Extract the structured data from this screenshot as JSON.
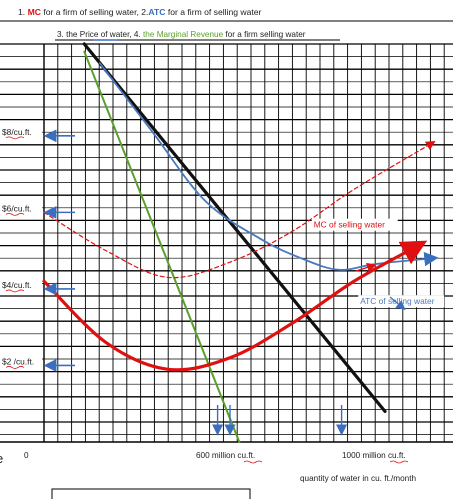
{
  "header": {
    "line1_parts": [
      {
        "text": "1. ",
        "color": "#222222"
      },
      {
        "text": "MC",
        "color": "#e01010"
      },
      {
        "text": " for a firm of selling water, 2.",
        "color": "#222222"
      },
      {
        "text": "ATC",
        "color": "#3a6fc0"
      },
      {
        "text": " for a firm of selling water",
        "color": "#222222"
      }
    ],
    "line2_parts": [
      {
        "text": "3. the ",
        "color": "#222222"
      },
      {
        "text": "Price",
        "color": "#222222"
      },
      {
        "text": " of  water, 4. ",
        "color": "#222222"
      },
      {
        "text": "the Marginal Revenue",
        "color": "#5aa02c"
      },
      {
        "text": " for a firm selling water",
        "color": "#222222"
      }
    ]
  },
  "colors": {
    "mc": "#e01010",
    "atc": "#4a78c0",
    "price": "#111111",
    "mr": "#5aa02c",
    "grid": "#000000",
    "arrow": "#3a6fc0"
  },
  "chart_data": {
    "type": "line",
    "y_tick_labels": [
      "$8/cu.ft.",
      "$6/cu.ft.",
      "$4/cu.ft.",
      "$2 /cu.ft."
    ],
    "y_tick_values": [
      8,
      6,
      4,
      2
    ],
    "x_tick_labels": [
      "0",
      "600 million cu.ft.",
      "1000 million cu.ft."
    ],
    "x_tick_values": [
      0,
      600,
      1000
    ],
    "xlabel": "quantity of water in cu. ft./month",
    "xlim": [
      0,
      1300
    ],
    "ylim": [
      0,
      10.4
    ],
    "series": [
      {
        "key": "price",
        "x": [
          130,
          1100
        ],
        "y": [
          10.4,
          0.8
        ]
      },
      {
        "key": "mr",
        "x": [
          130,
          630
        ],
        "y": [
          10.2,
          0
        ]
      },
      {
        "key": "atc",
        "x": [
          180,
          350,
          520,
          700,
          830,
          950,
          1070,
          1250
        ],
        "y": [
          9.9,
          8.1,
          6.3,
          5.3,
          4.8,
          4.5,
          4.65,
          4.8
        ]
      },
      {
        "key": "mc",
        "x": [
          0,
          200,
          400,
          600,
          800,
          1000,
          1200
        ],
        "y": [
          4.2,
          2.6,
          1.9,
          2.2,
          3.1,
          4.2,
          5.1
        ]
      },
      {
        "key": "mc_dashed",
        "x": [
          0,
          200,
          400,
          600,
          800,
          1000,
          1250
        ],
        "y": [
          6.0,
          5.0,
          4.3,
          4.7,
          5.5,
          6.6,
          7.8
        ]
      }
    ],
    "annotations": [
      {
        "text": "MC of selling water",
        "x": 870,
        "y": 5.6,
        "key": "mc"
      },
      {
        "text": "ATC of selling water",
        "x": 1020,
        "y": 3.6,
        "key": "atc"
      }
    ],
    "grid": true
  }
}
